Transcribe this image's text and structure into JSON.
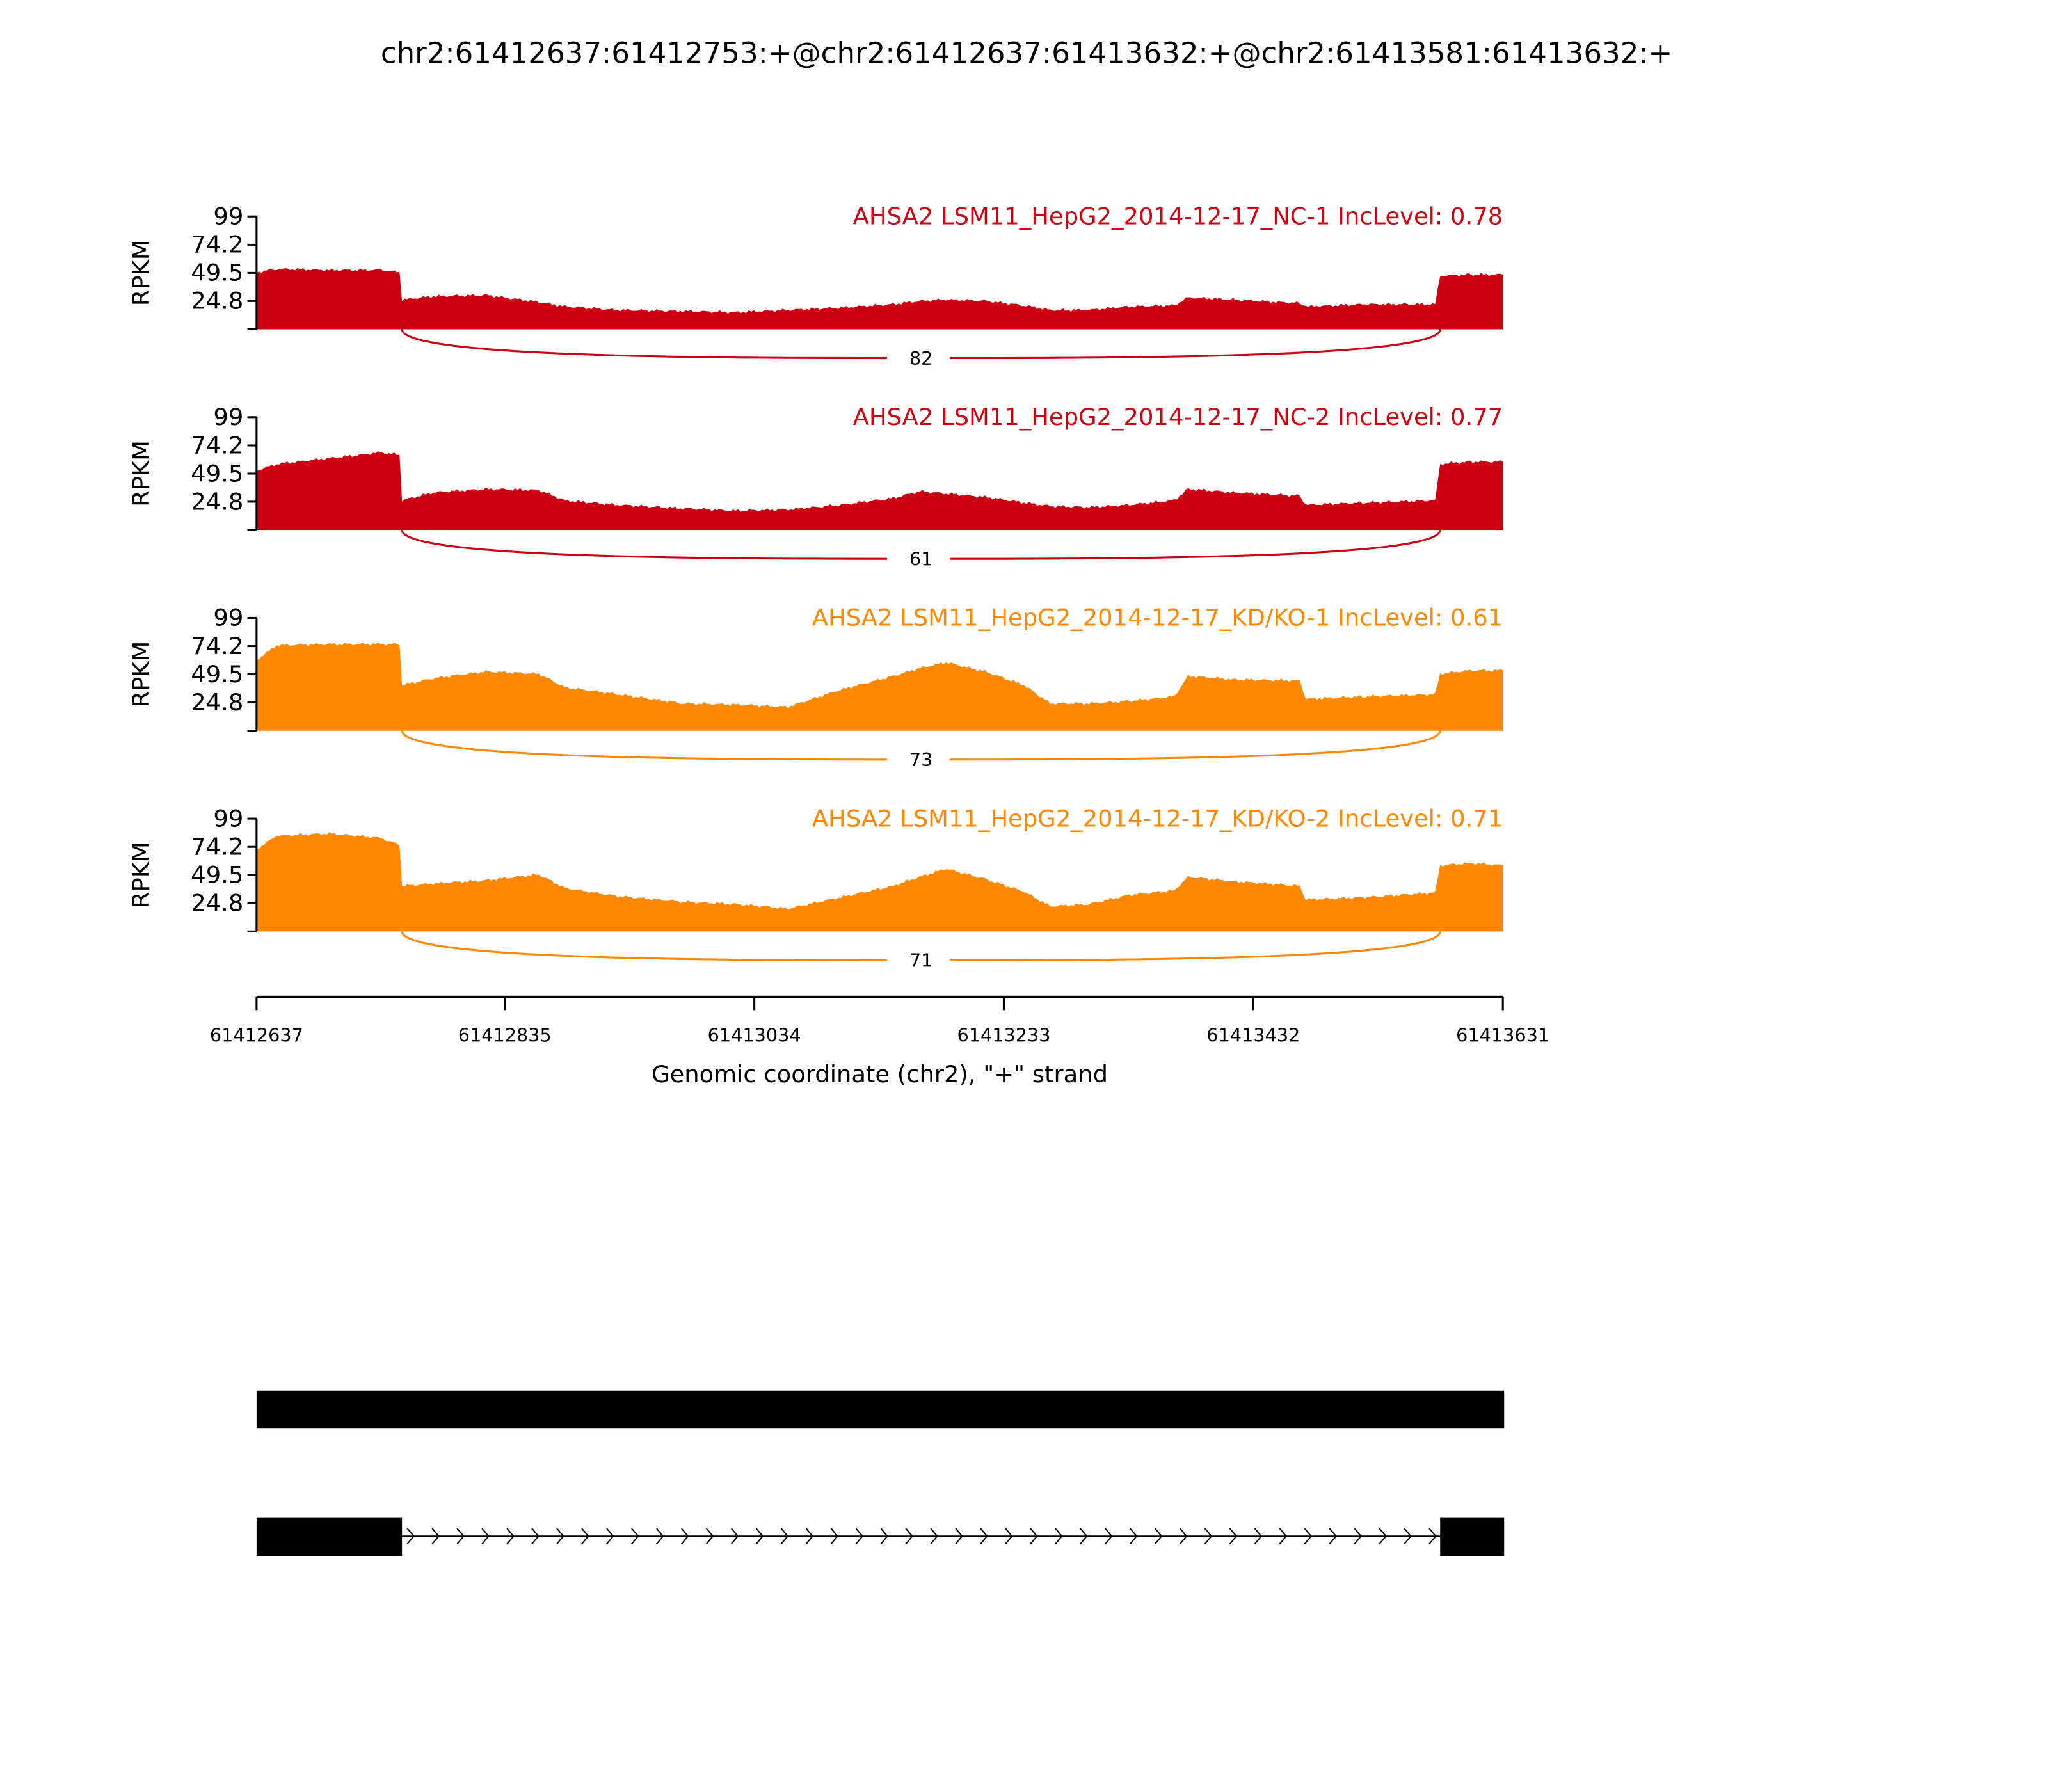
{
  "chart_data": {
    "type": "area",
    "title": "chr2:61412637:61412753:+@chr2:61412637:61413632:+@chr2:61413581:61413632:+",
    "xlabel": "Genomic coordinate (chr2), \"+\" strand",
    "ylabel": "RPKM",
    "xlim": [
      61412637,
      61413631
    ],
    "x_ticks": [
      "61412637",
      "61412835",
      "61413034",
      "61413233",
      "61413432",
      "61413631"
    ],
    "y_ticks": [
      "99",
      "74.2",
      "49.5",
      "24.8"
    ],
    "ylim": [
      0,
      99
    ],
    "exons": [
      [
        61412637,
        61412753
      ],
      [
        61413581,
        61413632
      ]
    ],
    "x": [
      61412637,
      61412653,
      61412695,
      61412736,
      61412751,
      61412753,
      61412778,
      61412820,
      61412862,
      61412883,
      61412925,
      61412977,
      61413019,
      61413061,
      61413103,
      61413145,
      61413166,
      61413187,
      61413218,
      61413249,
      61413270,
      61413301,
      61413333,
      61413369,
      61413380,
      61413416,
      61413469,
      61413474,
      61413521,
      61413577,
      61413581,
      61413605,
      61413631
    ],
    "series": [
      {
        "name": "AHSA2 LSM11_HepG2_2014-12-17_NC-1 IncLevel: 0.78",
        "color": "#cc0011",
        "junction_count": "82",
        "values": [
          50,
          53,
          52,
          52,
          50,
          26,
          29,
          30,
          24,
          20,
          17,
          16,
          15,
          17,
          19,
          22,
          25,
          26,
          25,
          21,
          17,
          17,
          20,
          21,
          28,
          26,
          23,
          20,
          22,
          22,
          47,
          48,
          48
        ]
      },
      {
        "name": "AHSA2 LSM11_HepG2_2014-12-17_NC-2 IncLevel: 0.77",
        "color": "#cc0011",
        "junction_count": "61",
        "values": [
          52,
          58,
          63,
          68,
          66,
          26,
          33,
          36,
          35,
          26,
          22,
          19,
          17,
          18,
          22,
          28,
          34,
          32,
          29,
          24,
          21,
          20,
          22,
          26,
          36,
          33,
          30,
          22,
          24,
          26,
          58,
          60,
          60
        ]
      },
      {
        "name": "AHSA2 LSM11_HepG2_2014-12-17_KD/KO-1 IncLevel: 0.61",
        "color": "#ff8800",
        "junction_count": "73",
        "values": [
          62,
          75,
          76,
          76,
          76,
          40,
          46,
          52,
          50,
          38,
          32,
          24,
          23,
          21,
          36,
          48,
          55,
          60,
          52,
          40,
          24,
          24,
          26,
          30,
          48,
          45,
          44,
          28,
          30,
          32,
          50,
          53,
          53
        ]
      },
      {
        "name": "AHSA2 LSM11_HepG2_2014-12-17_KD/KO-2 IncLevel: 0.71",
        "color": "#ff8800",
        "junction_count": "71",
        "values": [
          72,
          84,
          86,
          82,
          76,
          40,
          42,
          45,
          50,
          38,
          31,
          26,
          24,
          20,
          30,
          40,
          48,
          55,
          46,
          35,
          22,
          24,
          32,
          36,
          48,
          44,
          40,
          28,
          30,
          34,
          58,
          60,
          58
        ]
      }
    ]
  }
}
